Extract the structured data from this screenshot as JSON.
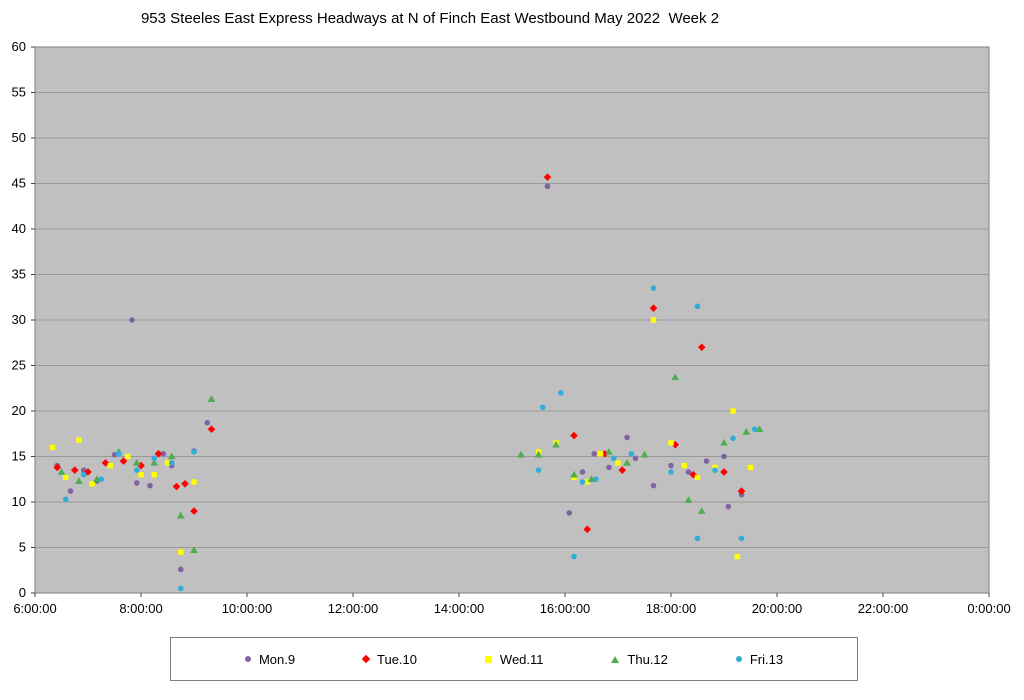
{
  "chart_data": {
    "type": "scatter",
    "title": "953 Steeles East Express Headways at N of Finch East Westbound May 2022  Week 2",
    "xlabel": "",
    "ylabel": "",
    "x_axis": {
      "min": 6,
      "max": 24,
      "tick_interval_hours": 2,
      "tick_labels": [
        "6:00:00",
        "8:00:00",
        "10:00:00",
        "12:00:00",
        "14:00:00",
        "16:00:00",
        "18:00:00",
        "20:00:00",
        "22:00:00",
        "0:00:00"
      ]
    },
    "y_axis": {
      "min": 0,
      "max": 60,
      "tick_interval": 5,
      "tick_labels": [
        "0",
        "5",
        "10",
        "15",
        "20",
        "25",
        "30",
        "35",
        "40",
        "45",
        "50",
        "55",
        "60"
      ]
    },
    "grid": "horizontal",
    "legend_position": "bottom",
    "plot_bg": "#c0c0c0",
    "grid_color": "#9a9a9a",
    "axis_color": "#7f7f7f",
    "series": [
      {
        "name": "Mon.9",
        "marker": "circle",
        "color": "#8064a2",
        "points": [
          [
            6.42,
            14.0
          ],
          [
            6.67,
            11.2
          ],
          [
            6.92,
            13.5
          ],
          [
            7.17,
            12.3
          ],
          [
            7.5,
            15.2
          ],
          [
            7.83,
            30.0
          ],
          [
            7.92,
            12.1
          ],
          [
            8.17,
            11.8
          ],
          [
            8.42,
            15.3
          ],
          [
            8.58,
            14.0
          ],
          [
            8.75,
            2.6
          ],
          [
            9.0,
            15.6
          ],
          [
            9.25,
            18.7
          ],
          [
            15.67,
            44.7
          ],
          [
            16.08,
            8.8
          ],
          [
            16.33,
            13.3
          ],
          [
            16.55,
            15.3
          ],
          [
            16.83,
            13.8
          ],
          [
            17.17,
            17.1
          ],
          [
            17.33,
            14.8
          ],
          [
            17.67,
            11.8
          ],
          [
            18.0,
            14.0
          ],
          [
            18.33,
            13.3
          ],
          [
            18.67,
            14.5
          ],
          [
            19.0,
            15.0
          ],
          [
            19.08,
            9.5
          ],
          [
            19.33,
            10.8
          ]
        ]
      },
      {
        "name": "Tue.10",
        "marker": "diamond",
        "color": "#ff0000",
        "points": [
          [
            6.42,
            13.8
          ],
          [
            6.75,
            13.5
          ],
          [
            7.0,
            13.3
          ],
          [
            7.33,
            14.3
          ],
          [
            7.67,
            14.5
          ],
          [
            8.0,
            14.0
          ],
          [
            8.33,
            15.3
          ],
          [
            8.67,
            11.7
          ],
          [
            8.83,
            12.0
          ],
          [
            9.0,
            9.0
          ],
          [
            9.33,
            18.0
          ],
          [
            15.67,
            45.7
          ],
          [
            16.17,
            17.3
          ],
          [
            16.42,
            7.0
          ],
          [
            16.75,
            15.3
          ],
          [
            17.08,
            13.5
          ],
          [
            17.67,
            31.3
          ],
          [
            18.08,
            16.3
          ],
          [
            18.42,
            13.0
          ],
          [
            18.58,
            27.0
          ],
          [
            19.0,
            13.3
          ],
          [
            19.33,
            11.2
          ]
        ]
      },
      {
        "name": "Wed.11",
        "marker": "square",
        "color": "#ffff00",
        "points": [
          [
            6.33,
            16.0
          ],
          [
            6.58,
            12.7
          ],
          [
            6.83,
            16.8
          ],
          [
            7.08,
            12.0
          ],
          [
            7.42,
            14.0
          ],
          [
            7.75,
            15.0
          ],
          [
            8.0,
            13.0
          ],
          [
            8.25,
            13.0
          ],
          [
            8.5,
            14.3
          ],
          [
            8.75,
            4.5
          ],
          [
            9.0,
            12.2
          ],
          [
            15.5,
            15.5
          ],
          [
            15.83,
            16.5
          ],
          [
            16.17,
            12.7
          ],
          [
            16.42,
            12.2
          ],
          [
            16.67,
            15.3
          ],
          [
            17.0,
            14.3
          ],
          [
            17.67,
            30.0
          ],
          [
            18.0,
            16.5
          ],
          [
            18.25,
            14.0
          ],
          [
            18.5,
            12.7
          ],
          [
            18.83,
            13.8
          ],
          [
            19.17,
            20.0
          ],
          [
            19.25,
            4.0
          ],
          [
            19.5,
            13.8
          ]
        ]
      },
      {
        "name": "Thu.12",
        "marker": "triangle",
        "color": "#4fad50",
        "points": [
          [
            6.5,
            13.3
          ],
          [
            6.83,
            12.3
          ],
          [
            7.17,
            12.5
          ],
          [
            7.58,
            15.5
          ],
          [
            7.92,
            14.3
          ],
          [
            8.25,
            14.3
          ],
          [
            8.58,
            15.0
          ],
          [
            8.75,
            8.5
          ],
          [
            9.0,
            4.7
          ],
          [
            9.33,
            21.3
          ],
          [
            15.17,
            15.2
          ],
          [
            15.5,
            15.2
          ],
          [
            15.83,
            16.3
          ],
          [
            16.17,
            13.0
          ],
          [
            16.5,
            12.5
          ],
          [
            16.83,
            15.5
          ],
          [
            17.17,
            14.3
          ],
          [
            17.5,
            15.2
          ],
          [
            18.08,
            23.7
          ],
          [
            18.33,
            10.2
          ],
          [
            18.58,
            9.0
          ],
          [
            19.0,
            16.5
          ],
          [
            19.42,
            17.7
          ],
          [
            19.67,
            18.0
          ]
        ]
      },
      {
        "name": "Fri.13",
        "marker": "circle",
        "color": "#31aed6",
        "points": [
          [
            6.58,
            10.3
          ],
          [
            6.92,
            13.0
          ],
          [
            7.25,
            12.5
          ],
          [
            7.58,
            15.3
          ],
          [
            7.92,
            13.5
          ],
          [
            8.25,
            14.8
          ],
          [
            8.58,
            14.3
          ],
          [
            8.75,
            0.5
          ],
          [
            9.0,
            15.5
          ],
          [
            15.5,
            13.5
          ],
          [
            15.58,
            20.4
          ],
          [
            15.92,
            22.0
          ],
          [
            16.17,
            4.0
          ],
          [
            16.33,
            12.2
          ],
          [
            16.58,
            12.5
          ],
          [
            16.92,
            14.8
          ],
          [
            17.25,
            15.3
          ],
          [
            17.67,
            33.5
          ],
          [
            18.0,
            13.3
          ],
          [
            18.5,
            31.5
          ],
          [
            18.5,
            6.0
          ],
          [
            18.83,
            13.5
          ],
          [
            19.17,
            17.0
          ],
          [
            19.33,
            6.0
          ],
          [
            19.58,
            18.0
          ]
        ]
      }
    ]
  }
}
